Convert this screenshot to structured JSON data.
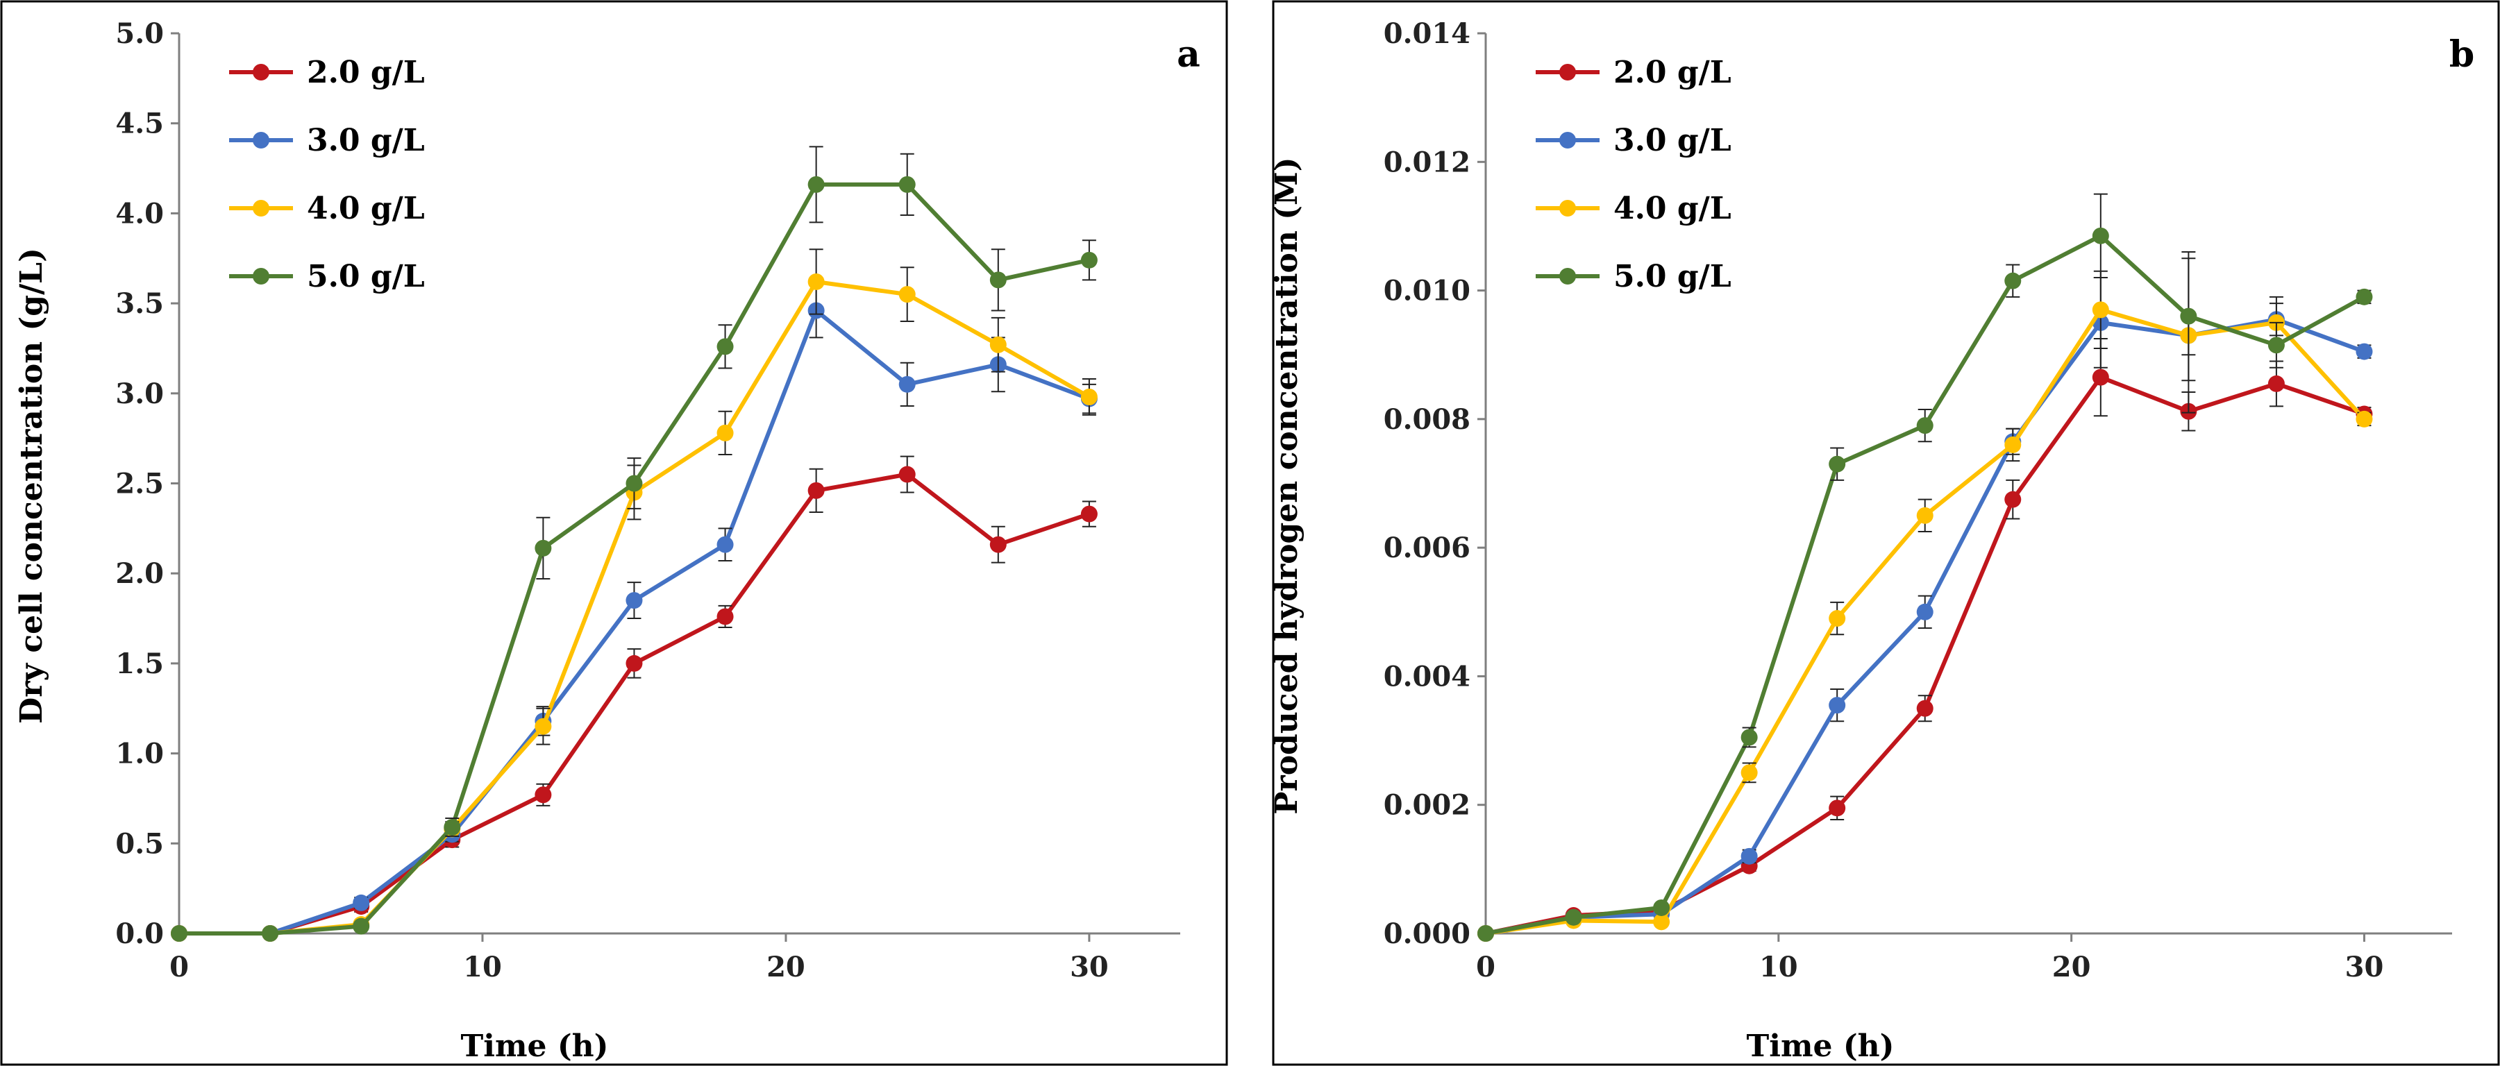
{
  "chart_data": [
    {
      "type": "line",
      "panel_label": "a",
      "title": "",
      "xlabel": "Time (h)",
      "ylabel": "Dry cell concentration (g/L)",
      "xlim": [
        0,
        33
      ],
      "ylim": [
        0,
        5
      ],
      "x_ticks": [
        "0",
        "10",
        "20",
        "30"
      ],
      "x_tick_values": [
        0,
        10,
        20,
        30
      ],
      "y_ticks": [
        "0.0",
        "0.5",
        "1.0",
        "1.5",
        "2.0",
        "2.5",
        "3.0",
        "3.5",
        "4.0",
        "4.5",
        "5.0"
      ],
      "y_tick_values": [
        0,
        0.5,
        1,
        1.5,
        2,
        2.5,
        3,
        3.5,
        4,
        4.5,
        5
      ],
      "legend_position": "top-left",
      "x": [
        0,
        3,
        6,
        9,
        12,
        15,
        18,
        21,
        24,
        27,
        30
      ],
      "series": [
        {
          "name": "2.0 g/L",
          "color": "#c0161c",
          "values": [
            0,
            0,
            0.15,
            0.52,
            0.77,
            1.5,
            1.76,
            2.46,
            2.55,
            2.16,
            2.33
          ],
          "errors": [
            0,
            0,
            0.03,
            0.04,
            0.06,
            0.08,
            0.06,
            0.12,
            0.1,
            0.1,
            0.07
          ]
        },
        {
          "name": "3.0 g/L",
          "color": "#4472c4",
          "values": [
            0,
            0,
            0.17,
            0.55,
            1.18,
            1.85,
            2.16,
            3.46,
            3.05,
            3.16,
            2.97
          ],
          "errors": [
            0,
            0,
            0.03,
            0.04,
            0.08,
            0.1,
            0.09,
            0.15,
            0.12,
            0.15,
            0.08
          ]
        },
        {
          "name": "4.0 g/L",
          "color": "#ffc000",
          "values": [
            0,
            0,
            0.05,
            0.58,
            1.15,
            2.45,
            2.78,
            3.62,
            3.55,
            3.27,
            2.98
          ],
          "errors": [
            0,
            0,
            0.02,
            0.04,
            0.1,
            0.15,
            0.12,
            0.18,
            0.15,
            0.15,
            0.1
          ]
        },
        {
          "name": "5.0 g/L",
          "color": "#507e32",
          "values": [
            0,
            0,
            0.04,
            0.59,
            2.14,
            2.5,
            3.26,
            4.16,
            4.16,
            3.63,
            3.74
          ],
          "errors": [
            0,
            0,
            0.02,
            0.05,
            0.17,
            0.14,
            0.12,
            0.21,
            0.17,
            0.17,
            0.11
          ]
        }
      ]
    },
    {
      "type": "line",
      "panel_label": "b",
      "title": "",
      "xlabel": "Time (h)",
      "ylabel": "Produced hydrogen concentration (M)",
      "xlim": [
        0,
        33
      ],
      "ylim": [
        0,
        0.014
      ],
      "x_ticks": [
        "0",
        "10",
        "20",
        "30"
      ],
      "x_tick_values": [
        0,
        10,
        20,
        30
      ],
      "y_ticks": [
        "0.000",
        "0.002",
        "0.004",
        "0.006",
        "0.008",
        "0.010",
        "0.012",
        "0.014"
      ],
      "y_tick_values": [
        0,
        0.002,
        0.004,
        0.006,
        0.008,
        0.01,
        0.012,
        0.014
      ],
      "legend_position": "top-left",
      "x": [
        0,
        3,
        6,
        9,
        12,
        15,
        18,
        21,
        24,
        27,
        30
      ],
      "series": [
        {
          "name": "2.0 g/L",
          "color": "#c0161c",
          "values": [
            0,
            0.00028,
            0.00035,
            0.00105,
            0.00195,
            0.0035,
            0.00675,
            0.00865,
            0.00812,
            0.00855,
            0.00808
          ],
          "errors": [
            0,
            5e-05,
            5e-05,
            8e-05,
            0.00018,
            0.0002,
            0.0003,
            0.0006,
            0.0003,
            0.00035,
            0.0001
          ]
        },
        {
          "name": "3.0 g/L",
          "color": "#4472c4",
          "values": [
            0,
            0.00025,
            0.0003,
            0.0012,
            0.00355,
            0.005,
            0.00765,
            0.0095,
            0.0093,
            0.00955,
            0.00905
          ],
          "errors": [
            0,
            5e-05,
            5e-05,
            0.0001,
            0.00025,
            0.00025,
            0.0002,
            0.0007,
            0.0012,
            0.00025,
            0.0001
          ]
        },
        {
          "name": "4.0 g/L",
          "color": "#ffc000",
          "values": [
            0,
            0.0002,
            0.00018,
            0.0025,
            0.0049,
            0.0065,
            0.0076,
            0.0097,
            0.0093,
            0.0095,
            0.008
          ],
          "errors": [
            0,
            5e-05,
            5e-05,
            0.00015,
            0.00025,
            0.00025,
            0.00025,
            0.0006,
            0.0003,
            0.0004,
            0.0001
          ]
        },
        {
          "name": "5.0 g/L",
          "color": "#507e32",
          "values": [
            0,
            0.00025,
            0.0004,
            0.00305,
            0.0073,
            0.0079,
            0.01015,
            0.01085,
            0.0096,
            0.00915,
            0.0099
          ],
          "errors": [
            0,
            5e-05,
            5e-05,
            0.00015,
            0.00025,
            0.00025,
            0.00025,
            0.00065,
            0.001,
            0.00035,
            0.0001
          ]
        }
      ]
    }
  ]
}
